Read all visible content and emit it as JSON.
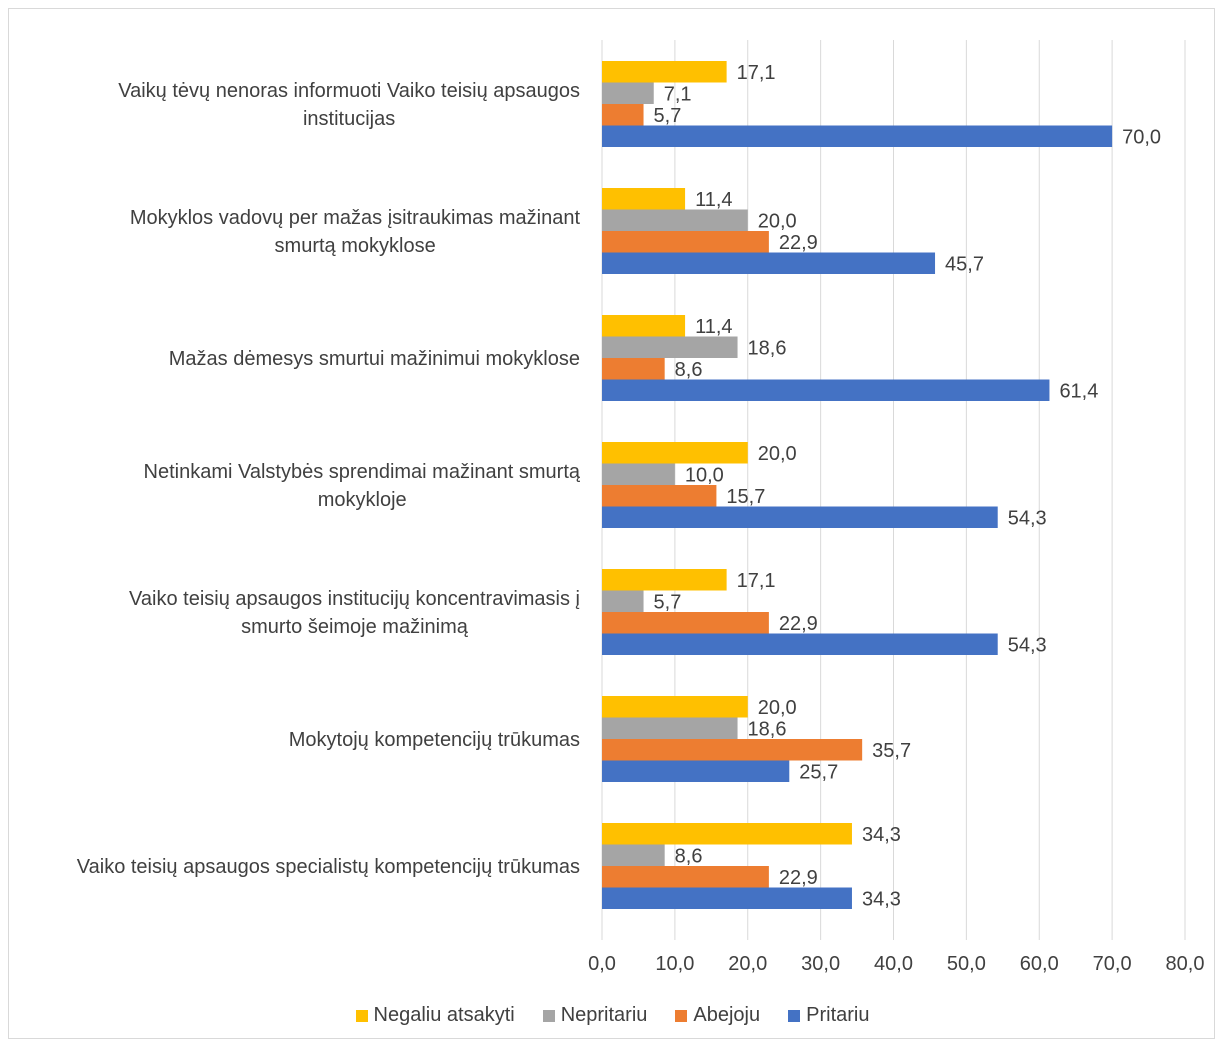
{
  "chart_data": {
    "type": "bar",
    "orientation": "horizontal",
    "title": "",
    "xlabel": "",
    "ylabel": "",
    "xlim": [
      0,
      80
    ],
    "x_ticks": [
      "0,0",
      "10,0",
      "20,0",
      "30,0",
      "40,0",
      "50,0",
      "60,0",
      "70,0",
      "80,0"
    ],
    "grid": "vertical",
    "legend_position": "bottom",
    "categories": [
      [
        "Vaikų tėvų nenoras informuoti Vaiko teisių apsaugos",
        "institucijas"
      ],
      [
        "Mokyklos vadovų per mažas įsitraukimas mažinant",
        "smurtą mokyklose"
      ],
      [
        "Mažas dėmesys smurtui mažinimui mokyklose"
      ],
      [
        "Netinkami Valstybės sprendimai mažinant smurtą",
        "mokykloje"
      ],
      [
        "Vaiko teisių apsaugos institucijų koncentravimasis į",
        "smurto šeimoje mažinimą"
      ],
      [
        "Mokytojų kompetencijų trūkumas"
      ],
      [
        "Vaiko teisių apsaugos specialistų kompetencijų trūkumas"
      ]
    ],
    "series": [
      {
        "name": "Negaliu atsakyti",
        "color": "#ffc000",
        "values": [
          17.1,
          11.4,
          11.4,
          20.0,
          17.1,
          20.0,
          34.3
        ],
        "labels": [
          "17,1",
          "11,4",
          "11,4",
          "20,0",
          "17,1",
          "20,0",
          "34,3"
        ]
      },
      {
        "name": "Nepritariu",
        "color": "#a5a5a5",
        "values": [
          7.1,
          20.0,
          18.6,
          10.0,
          5.7,
          18.6,
          8.6
        ],
        "labels": [
          "7,1",
          "20,0",
          "18,6",
          "10,0",
          "5,7",
          "18,6",
          "8,6"
        ]
      },
      {
        "name": "Abejoju",
        "color": "#ed7d31",
        "values": [
          5.7,
          22.9,
          8.6,
          15.7,
          22.9,
          35.7,
          22.9
        ],
        "labels": [
          "5,7",
          "22,9",
          "8,6",
          "15,7",
          "22,9",
          "35,7",
          "22,9"
        ]
      },
      {
        "name": "Pritariu",
        "color": "#4472c4",
        "values": [
          70.0,
          45.7,
          61.4,
          54.3,
          54.3,
          25.7,
          34.3
        ],
        "labels": [
          "70,0",
          "45,7",
          "61,4",
          "54,3",
          "54,3",
          "25,7",
          "34,3"
        ]
      }
    ]
  }
}
